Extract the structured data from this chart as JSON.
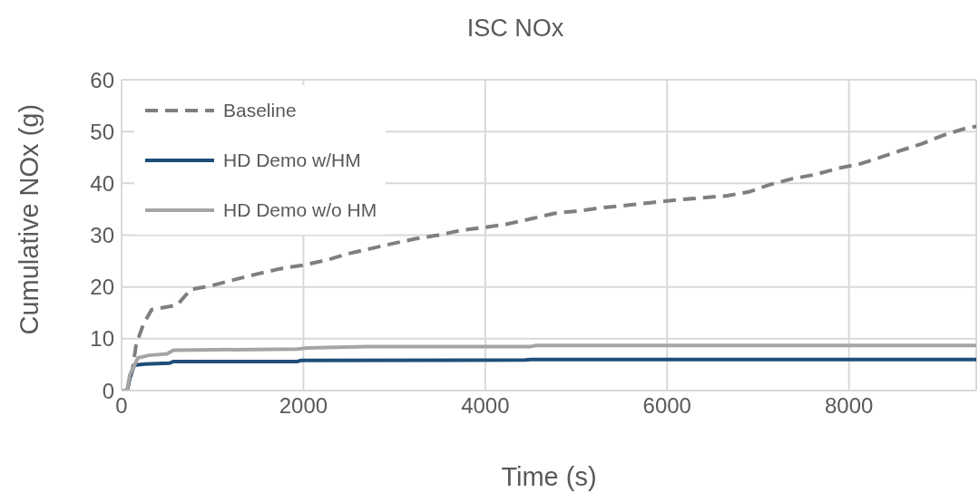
{
  "chart_data": {
    "type": "line",
    "title": "ISC NOx",
    "xlabel": "Time (s)",
    "ylabel": "Cumulative NOx (g)",
    "xlim": [
      0,
      9400
    ],
    "xticks": [
      0,
      2000,
      4000,
      6000,
      8000
    ],
    "ylim": [
      0,
      60
    ],
    "yticks": [
      0,
      10,
      20,
      30,
      40,
      50,
      60
    ],
    "grid": true,
    "legend": "top left",
    "marker": "none",
    "series": [
      {
        "name": "Baseline",
        "color": "#7f7f7f",
        "line_style": "dashed",
        "x": [
          0,
          60,
          120,
          160,
          240,
          330,
          610,
          760,
          1000,
          1240,
          1490,
          1740,
          1990,
          2260,
          2490,
          2740,
          2990,
          3230,
          3480,
          3730,
          3990,
          4230,
          4490,
          4760,
          5030,
          5290,
          5580,
          5840,
          6110,
          6380,
          6660,
          6910,
          7140,
          7380,
          7630,
          7880,
          8130,
          8360,
          8580,
          8810,
          9040,
          9280,
          9400
        ],
        "values": [
          0,
          0,
          4,
          8.9,
          12.8,
          15.6,
          16.5,
          19.5,
          20.3,
          21.4,
          22.5,
          23.5,
          24.2,
          25.2,
          26.4,
          27.4,
          28.4,
          29.3,
          30.0,
          30.9,
          31.5,
          32.1,
          33.1,
          34.2,
          34.7,
          35.3,
          35.8,
          36.3,
          36.8,
          37.2,
          37.6,
          38.4,
          39.8,
          40.9,
          41.7,
          42.9,
          43.8,
          45.1,
          46.4,
          47.7,
          49.3,
          50.6,
          51
        ]
      },
      {
        "name": "HD Demo w/HM",
        "color": "#1f4e79",
        "line_style": "solid",
        "x": [
          0,
          60,
          100,
          140,
          260,
          530,
          570,
          1930,
          1970,
          4440,
          4500,
          9400
        ],
        "values": [
          0,
          0,
          3,
          4.9,
          5.1,
          5.3,
          5.6,
          5.6,
          5.8,
          5.9,
          6.0,
          6.0
        ]
      },
      {
        "name": "HD Demo w/o HM",
        "color": "#a5a5a5",
        "line_style": "solid",
        "x": [
          0,
          60,
          90,
          180,
          300,
          500,
          570,
          1930,
          2030,
          2700,
          4500,
          4560,
          9400
        ],
        "values": [
          0,
          0,
          3,
          6.3,
          6.8,
          7.1,
          7.8,
          8.0,
          8.2,
          8.5,
          8.5,
          8.7,
          8.7
        ]
      }
    ]
  }
}
